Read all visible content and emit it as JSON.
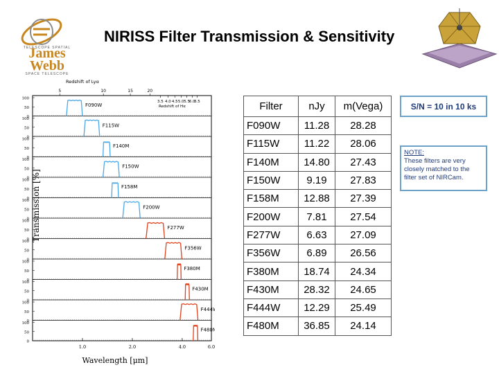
{
  "title": "NIRISS  Filter Transmission & Sensitivity",
  "logo": {
    "top_text": "TELESCOPE SPATIAL",
    "main": "James Webb",
    "bottom_text": "SPACE TELESCOPE"
  },
  "table": {
    "headers": [
      "Filter",
      "nJy",
      "m(Vega)"
    ],
    "rows": [
      [
        "F090W",
        "11.28",
        "28.28"
      ],
      [
        "F115W",
        "11.22",
        "28.06"
      ],
      [
        "F140M",
        "14.80",
        "27.43"
      ],
      [
        "F150W",
        "9.19",
        "27.83"
      ],
      [
        "F158M",
        "12.88",
        "27.39"
      ],
      [
        "F200W",
        "7.81",
        "27.54"
      ],
      [
        "F277W",
        "6.63",
        "27.09"
      ],
      [
        "F356W",
        "6.89",
        "26.56"
      ],
      [
        "F380M",
        "18.74",
        "24.34"
      ],
      [
        "F430M",
        "28.32",
        "24.65"
      ],
      [
        "F444W",
        "12.29",
        "25.49"
      ],
      [
        "F480M",
        "36.85",
        "24.14"
      ]
    ]
  },
  "sn_label": "S/N = 10 in 10 ks",
  "note": {
    "heading": "NOTE:",
    "text": "These filters are very closely matched to the filter set of NIRCam."
  },
  "chart_data": {
    "type": "line",
    "xlabel": "Wavelength  [μm]",
    "ylabel": "Transmission  [%]",
    "xlim": [
      0.5,
      6.0
    ],
    "x_ticks": [
      "1.0",
      "2.0",
      "4.0",
      "6.0"
    ],
    "y_ticks": [
      "0",
      "50",
      "100"
    ],
    "ylim": [
      0,
      100
    ],
    "top_axis_lya": {
      "label": "Redshift of Lyα",
      "ticks": [
        "5",
        "10",
        "15",
        "20"
      ]
    },
    "top_axis_ha": {
      "label": "Redshift of Hα",
      "ticks": [
        "3.5",
        "4.0",
        "4.5",
        "5.0",
        "5.5",
        "6.0",
        "6.5"
      ]
    },
    "colors": {
      "short": "#4aa8e8",
      "long": "#e0401a",
      "axis": "#000000"
    },
    "series": [
      {
        "name": "F090W",
        "band": [
          0.8,
          1.0
        ],
        "peak": 85
      },
      {
        "name": "F115W",
        "band": [
          1.02,
          1.27
        ],
        "peak": 88
      },
      {
        "name": "F140M",
        "band": [
          1.33,
          1.47
        ],
        "peak": 80
      },
      {
        "name": "F150W",
        "band": [
          1.33,
          1.67
        ],
        "peak": 85
      },
      {
        "name": "F158M",
        "band": [
          1.5,
          1.65
        ],
        "peak": 80
      },
      {
        "name": "F200W",
        "band": [
          1.75,
          2.23
        ],
        "peak": 88
      },
      {
        "name": "F277W",
        "band": [
          2.42,
          3.13
        ],
        "peak": 85
      },
      {
        "name": "F356W",
        "band": [
          3.14,
          3.98
        ],
        "peak": 88
      },
      {
        "name": "F380M",
        "band": [
          3.73,
          3.94
        ],
        "peak": 82
      },
      {
        "name": "F430M",
        "band": [
          4.17,
          4.42
        ],
        "peak": 85
      },
      {
        "name": "F444W",
        "band": [
          3.88,
          4.98
        ],
        "peak": 88
      },
      {
        "name": "F480M",
        "band": [
          4.66,
          4.97
        ],
        "peak": 82
      }
    ]
  }
}
